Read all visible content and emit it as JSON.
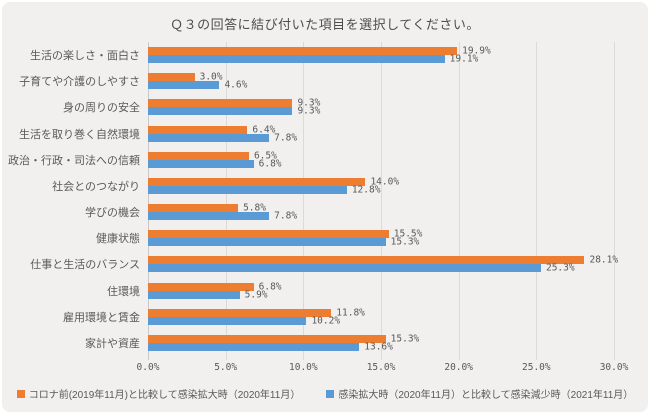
{
  "colors": {
    "series1": "#ED7D31",
    "series2": "#5B9BD5",
    "text": "#595959",
    "gridline": "#DBDAD8",
    "background": "#F1F0EE"
  },
  "chart_data": {
    "type": "bar",
    "orientation": "horizontal",
    "title": "Ｑ３の回答に結び付いた項目を選択してください。",
    "categories": [
      "生活の楽しさ・面白さ",
      "子育てや介護のしやすさ",
      "身の周りの安全",
      "生活を取り巻く自然環境",
      "政治・行政・司法への信頼",
      "社会とのつながり",
      "学びの機会",
      "健康状態",
      "仕事と生活のバランス",
      "住環境",
      "雇用環境と賃金",
      "家計や資産"
    ],
    "series": [
      {
        "name": "コロナ前(2019年11月)と比較して感染拡大時（2020年11月）",
        "color": "#ED7D31",
        "values": [
          19.9,
          3.0,
          9.3,
          6.4,
          6.5,
          14.0,
          5.8,
          15.5,
          28.1,
          6.8,
          11.8,
          15.3
        ]
      },
      {
        "name": "感染拡大時（2020年11月）と比較して感染減少時（2021年11月）",
        "color": "#5B9BD5",
        "values": [
          19.1,
          4.6,
          9.3,
          7.8,
          6.8,
          12.8,
          7.8,
          15.3,
          25.3,
          5.9,
          10.2,
          13.6
        ]
      }
    ],
    "xlim": [
      0,
      30
    ],
    "xticks": [
      "0.0%",
      "5.0%",
      "10.0%",
      "15.0%",
      "20.0%",
      "25.0%",
      "30.0%"
    ],
    "value_suffix": "%",
    "value_decimals": 1,
    "grid": true,
    "legend_position": "bottom"
  }
}
